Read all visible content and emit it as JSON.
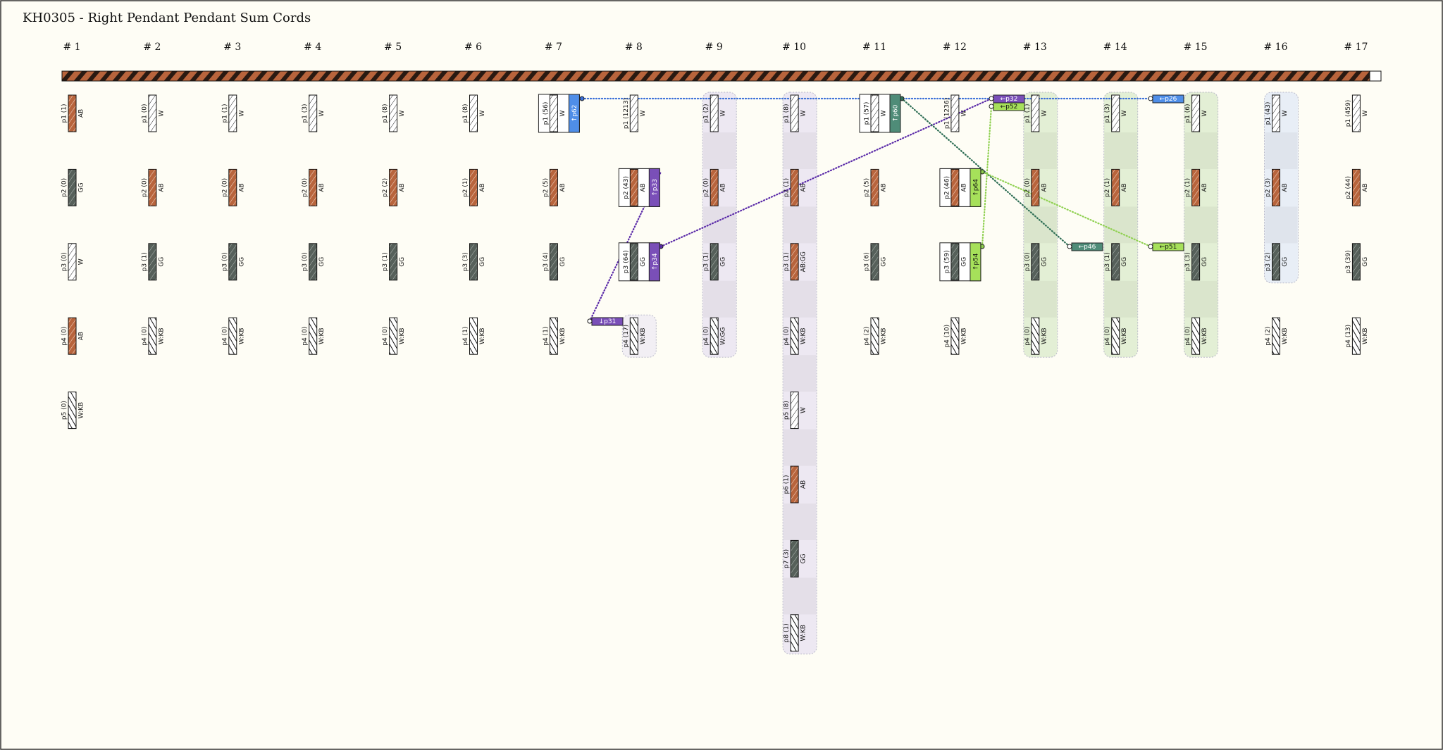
{
  "title": "KH0305 - Right Pendant Pendant Sum Cords",
  "groups": [
    {
      "label": "# 1",
      "cords": [
        {
          "label": "p1 (1)",
          "color": "AB"
        },
        {
          "label": "p2 (0)",
          "color": "GG"
        },
        {
          "label": "p3 (0)",
          "color": "W"
        },
        {
          "label": "p4 (0)",
          "color": "AB"
        },
        {
          "label": "p5 (0)",
          "color": "W:KB"
        }
      ]
    },
    {
      "label": "# 2",
      "cords": [
        {
          "label": "p1 (0)",
          "color": "W"
        },
        {
          "label": "p2 (0)",
          "color": "AB"
        },
        {
          "label": "p3 (1)",
          "color": "GG"
        },
        {
          "label": "p4 (0)",
          "color": "W:KB"
        }
      ]
    },
    {
      "label": "# 3",
      "cords": [
        {
          "label": "p1 (1)",
          "color": "W"
        },
        {
          "label": "p2 (0)",
          "color": "AB"
        },
        {
          "label": "p3 (0)",
          "color": "GG"
        },
        {
          "label": "p4 (0)",
          "color": "W:KB"
        }
      ]
    },
    {
      "label": "# 4",
      "cords": [
        {
          "label": "p1 (3)",
          "color": "W"
        },
        {
          "label": "p2 (0)",
          "color": "AB"
        },
        {
          "label": "p3 (0)",
          "color": "GG"
        },
        {
          "label": "p4 (0)",
          "color": "W:KB"
        }
      ]
    },
    {
      "label": "# 5",
      "cords": [
        {
          "label": "p1 (8)",
          "color": "W"
        },
        {
          "label": "p2 (2)",
          "color": "AB"
        },
        {
          "label": "p3 (1)",
          "color": "GG"
        },
        {
          "label": "p4 (0)",
          "color": "W:KB"
        }
      ]
    },
    {
      "label": "# 6",
      "cords": [
        {
          "label": "p1 (8)",
          "color": "W"
        },
        {
          "label": "p2 (1)",
          "color": "AB"
        },
        {
          "label": "p3 (3)",
          "color": "GG"
        },
        {
          "label": "p4 (1)",
          "color": "W:KB"
        }
      ]
    },
    {
      "label": "# 7",
      "cords": [
        {
          "label": "p1 (56)",
          "color": "W",
          "sum": {
            "label": "↑p62",
            "color": "#4f8ee8"
          }
        },
        {
          "label": "p2 (5)",
          "color": "AB"
        },
        {
          "label": "p3 (4)",
          "color": "GG"
        },
        {
          "label": "p4 (1)",
          "color": "W:KB"
        }
      ]
    },
    {
      "label": "# 8",
      "cords": [
        {
          "label": "p1 (1213)",
          "color": "W"
        },
        {
          "label": "p2 (43)",
          "color": "AB",
          "sum": {
            "label": "↑p33",
            "color": "#7a4fb8"
          }
        },
        {
          "label": "p3 (64)",
          "color": "GG",
          "sum": {
            "label": "↑p34",
            "color": "#7a4fb8"
          }
        },
        {
          "label": "p4 (17)",
          "color": "W:KB"
        }
      ]
    },
    {
      "label": "# 9",
      "cords": [
        {
          "label": "p1 (2)",
          "color": "W"
        },
        {
          "label": "p2 (0)",
          "color": "AB"
        },
        {
          "label": "p3 (1)",
          "color": "GG"
        },
        {
          "label": "p4 (0)",
          "color": "W:GG"
        }
      ]
    },
    {
      "label": "# 10",
      "cords": [
        {
          "label": "p1 (8)",
          "color": "W"
        },
        {
          "label": "p2 (1)",
          "color": "AB"
        },
        {
          "label": "p3 (1)",
          "color": "AB:GG"
        },
        {
          "label": "p4 (0)",
          "color": "W:KB"
        },
        {
          "label": "p5 (8)",
          "color": "W"
        },
        {
          "label": "p6 (1)",
          "color": "AB"
        },
        {
          "label": "p7 (3)",
          "color": "GG"
        },
        {
          "label": "p8 (1)",
          "color": "W:KB"
        }
      ]
    },
    {
      "label": "# 11",
      "cords": [
        {
          "label": "p1 (57)",
          "color": "W",
          "sum": {
            "label": "↑p60",
            "color": "#4f8c78"
          }
        },
        {
          "label": "p2 (5)",
          "color": "AB"
        },
        {
          "label": "p3 (6)",
          "color": "GG"
        },
        {
          "label": "p4 (2)",
          "color": "W:KB"
        }
      ]
    },
    {
      "label": "# 12",
      "cords": [
        {
          "label": "p1 (1236)",
          "color": "W"
        },
        {
          "label": "p2 (46)",
          "color": "AB",
          "sum": {
            "label": "↑p64",
            "color": "#a6e05a"
          }
        },
        {
          "label": "p3 (59)",
          "color": "GG",
          "sum": {
            "label": "↑p54",
            "color": "#a6e05a"
          }
        },
        {
          "label": "p4 (10)",
          "color": "W:KB"
        }
      ]
    },
    {
      "label": "# 13",
      "cords": [
        {
          "label": "p1 (1)",
          "color": "W"
        },
        {
          "label": "p2 (0)",
          "color": "AB"
        },
        {
          "label": "p3 (0)",
          "color": "GG"
        },
        {
          "label": "p4 (0)",
          "color": "W:KB"
        }
      ]
    },
    {
      "label": "# 14",
      "cords": [
        {
          "label": "p1 (3)",
          "color": "W"
        },
        {
          "label": "p2 (1)",
          "color": "AB"
        },
        {
          "label": "p3 (1)",
          "color": "GG"
        },
        {
          "label": "p4 (0)",
          "color": "W:KB"
        }
      ]
    },
    {
      "label": "# 15",
      "cords": [
        {
          "label": "p1 (6)",
          "color": "W"
        },
        {
          "label": "p2 (1)",
          "color": "AB"
        },
        {
          "label": "p3 (3)",
          "color": "GG"
        },
        {
          "label": "p4 (0)",
          "color": "W:KB"
        }
      ]
    },
    {
      "label": "# 16",
      "cords": [
        {
          "label": "p1 (43)",
          "color": "W"
        },
        {
          "label": "p2 (3)",
          "color": "AB"
        },
        {
          "label": "p3 (2)",
          "color": "GG"
        },
        {
          "label": "p4 (2)",
          "color": "W:KB"
        }
      ]
    },
    {
      "label": "# 17",
      "cords": [
        {
          "label": "p1 (459)",
          "color": "W"
        },
        {
          "label": "p2 (44)",
          "color": "AB"
        },
        {
          "label": "p3 (39)",
          "color": "GG"
        },
        {
          "label": "p4 (13)",
          "color": "W:KB"
        }
      ]
    }
  ],
  "tags": [
    {
      "label": "↓p31",
      "color": "#7a4fb8"
    },
    {
      "label": "←p32",
      "color": "#7a4fb8"
    },
    {
      "label": "←p52",
      "color": "#a6e05a"
    },
    {
      "label": "←p46",
      "color": "#4f8c78"
    },
    {
      "label": "←p51",
      "color": "#a6e05a"
    },
    {
      "label": "←p26",
      "color": "#4f8ee8"
    }
  ]
}
